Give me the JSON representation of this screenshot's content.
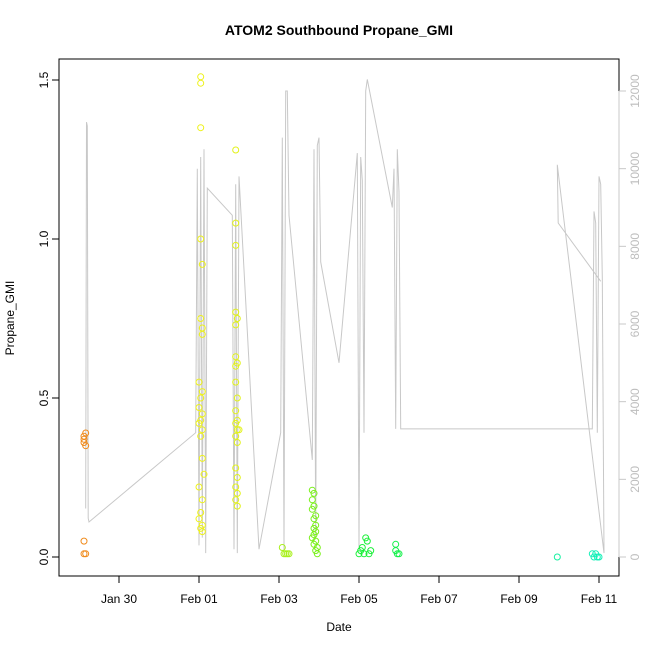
{
  "chart_data": {
    "type": "scatter",
    "title": "ATOM2 Southbound Propane_GMI",
    "xlabel": "Date",
    "ylabel": "Propane_GMI",
    "x_tick_labels": [
      "Jan 30",
      "Feb 01",
      "Feb 03",
      "Feb 05",
      "Feb 07",
      "Feb 09",
      "Feb 11"
    ],
    "x_ticks": [
      "2017-01-30",
      "2017-02-01",
      "2017-02-03",
      "2017-02-05",
      "2017-02-07",
      "2017-02-09",
      "2017-02-11"
    ],
    "xlim": [
      "2017-01-28T12:00",
      "2017-02-11T12:00"
    ],
    "ylim_left": [
      0,
      1.55
    ],
    "y_ticks_left": [
      "0.0",
      "0.5",
      "1.0",
      "1.5"
    ],
    "ylim_right": [
      0,
      12500
    ],
    "y_ticks_right": [
      "0",
      "2000",
      "4000",
      "6000",
      "8000",
      "10000",
      "12000"
    ],
    "right_axis_color": "#c8c8c8",
    "altitude_line_color": "#c8c8c8",
    "grid": false,
    "points": [
      {
        "x": "2017-01-29T03:00",
        "y": 0.38,
        "color": "#f08a1a"
      },
      {
        "x": "2017-01-29T03:00",
        "y": 0.37,
        "color": "#f08a1a"
      },
      {
        "x": "2017-01-29T03:00",
        "y": 0.36,
        "color": "#f08a1a"
      },
      {
        "x": "2017-01-29T04:00",
        "y": 0.39,
        "color": "#f08a1a"
      },
      {
        "x": "2017-01-29T04:00",
        "y": 0.35,
        "color": "#f08a1a"
      },
      {
        "x": "2017-01-29T03:00",
        "y": 0.05,
        "color": "#f08a1a"
      },
      {
        "x": "2017-01-29T03:00",
        "y": 0.01,
        "color": "#f08a1a"
      },
      {
        "x": "2017-01-29T04:00",
        "y": 0.01,
        "color": "#f08a1a"
      },
      {
        "x": "2017-02-01T01:00",
        "y": 1.51,
        "color": "#eef21a"
      },
      {
        "x": "2017-02-01T01:00",
        "y": 1.49,
        "color": "#eef21a"
      },
      {
        "x": "2017-02-01T01:00",
        "y": 1.35,
        "color": "#eef21a"
      },
      {
        "x": "2017-02-01T01:00",
        "y": 1.0,
        "color": "#eef21a"
      },
      {
        "x": "2017-02-01T02:00",
        "y": 0.92,
        "color": "#eef21a"
      },
      {
        "x": "2017-02-01T01:00",
        "y": 0.75,
        "color": "#eef21a"
      },
      {
        "x": "2017-02-01T02:00",
        "y": 0.72,
        "color": "#eef21a"
      },
      {
        "x": "2017-02-01T02:00",
        "y": 0.7,
        "color": "#eef21a"
      },
      {
        "x": "2017-02-01T00:00",
        "y": 0.55,
        "color": "#eef21a"
      },
      {
        "x": "2017-02-01T02:00",
        "y": 0.52,
        "color": "#eef21a"
      },
      {
        "x": "2017-02-01T01:00",
        "y": 0.5,
        "color": "#eef21a"
      },
      {
        "x": "2017-02-01T00:00",
        "y": 0.47,
        "color": "#eef21a"
      },
      {
        "x": "2017-02-01T02:00",
        "y": 0.45,
        "color": "#eef21a"
      },
      {
        "x": "2017-02-01T01:00",
        "y": 0.43,
        "color": "#eef21a"
      },
      {
        "x": "2017-02-01T00:00",
        "y": 0.42,
        "color": "#eef21a"
      },
      {
        "x": "2017-02-01T02:00",
        "y": 0.4,
        "color": "#eef21a"
      },
      {
        "x": "2017-02-01T01:00",
        "y": 0.38,
        "color": "#eef21a"
      },
      {
        "x": "2017-02-01T02:00",
        "y": 0.31,
        "color": "#eef21a"
      },
      {
        "x": "2017-02-01T03:00",
        "y": 0.26,
        "color": "#eef21a"
      },
      {
        "x": "2017-02-01T00:00",
        "y": 0.22,
        "color": "#eef21a"
      },
      {
        "x": "2017-02-01T02:00",
        "y": 0.18,
        "color": "#eef21a"
      },
      {
        "x": "2017-02-01T01:00",
        "y": 0.14,
        "color": "#eef21a"
      },
      {
        "x": "2017-02-01T00:00",
        "y": 0.12,
        "color": "#eef21a"
      },
      {
        "x": "2017-02-01T02:00",
        "y": 0.1,
        "color": "#eef21a"
      },
      {
        "x": "2017-02-01T01:00",
        "y": 0.09,
        "color": "#eef21a"
      },
      {
        "x": "2017-02-01T02:00",
        "y": 0.08,
        "color": "#eef21a"
      },
      {
        "x": "2017-02-01T22:00",
        "y": 1.28,
        "color": "#e2f21a"
      },
      {
        "x": "2017-02-01T22:00",
        "y": 1.05,
        "color": "#e2f21a"
      },
      {
        "x": "2017-02-01T22:00",
        "y": 0.98,
        "color": "#e2f21a"
      },
      {
        "x": "2017-02-01T22:00",
        "y": 0.77,
        "color": "#e2f21a"
      },
      {
        "x": "2017-02-01T23:00",
        "y": 0.75,
        "color": "#e2f21a"
      },
      {
        "x": "2017-02-01T22:00",
        "y": 0.73,
        "color": "#e2f21a"
      },
      {
        "x": "2017-02-01T22:00",
        "y": 0.63,
        "color": "#e2f21a"
      },
      {
        "x": "2017-02-01T23:00",
        "y": 0.61,
        "color": "#e2f21a"
      },
      {
        "x": "2017-02-01T22:00",
        "y": 0.6,
        "color": "#e2f21a"
      },
      {
        "x": "2017-02-01T22:00",
        "y": 0.55,
        "color": "#e2f21a"
      },
      {
        "x": "2017-02-01T23:00",
        "y": 0.5,
        "color": "#e2f21a"
      },
      {
        "x": "2017-02-01T22:00",
        "y": 0.46,
        "color": "#e2f21a"
      },
      {
        "x": "2017-02-01T23:00",
        "y": 0.43,
        "color": "#e2f21a"
      },
      {
        "x": "2017-02-01T22:00",
        "y": 0.42,
        "color": "#e2f21a"
      },
      {
        "x": "2017-02-01T23:00",
        "y": 0.4,
        "color": "#e2f21a"
      },
      {
        "x": "2017-02-01T22:00",
        "y": 0.38,
        "color": "#e2f21a"
      },
      {
        "x": "2017-02-02T00:00",
        "y": 0.4,
        "color": "#e2f21a"
      },
      {
        "x": "2017-02-01T23:00",
        "y": 0.36,
        "color": "#e2f21a"
      },
      {
        "x": "2017-02-01T22:00",
        "y": 0.28,
        "color": "#e2f21a"
      },
      {
        "x": "2017-02-01T23:00",
        "y": 0.25,
        "color": "#e2f21a"
      },
      {
        "x": "2017-02-01T22:00",
        "y": 0.22,
        "color": "#e2f21a"
      },
      {
        "x": "2017-02-01T23:00",
        "y": 0.2,
        "color": "#e2f21a"
      },
      {
        "x": "2017-02-01T22:00",
        "y": 0.18,
        "color": "#e2f21a"
      },
      {
        "x": "2017-02-01T23:00",
        "y": 0.16,
        "color": "#e2f21a"
      },
      {
        "x": "2017-02-03T02:00",
        "y": 0.03,
        "color": "#a8f01a"
      },
      {
        "x": "2017-02-03T03:00",
        "y": 0.01,
        "color": "#a8f01a"
      },
      {
        "x": "2017-02-03T04:00",
        "y": 0.01,
        "color": "#a8f01a"
      },
      {
        "x": "2017-02-03T05:00",
        "y": 0.01,
        "color": "#a8f01a"
      },
      {
        "x": "2017-02-03T06:00",
        "y": 0.01,
        "color": "#a8f01a"
      },
      {
        "x": "2017-02-03T20:00",
        "y": 0.21,
        "color": "#7af01a"
      },
      {
        "x": "2017-02-03T21:00",
        "y": 0.2,
        "color": "#7af01a"
      },
      {
        "x": "2017-02-03T20:00",
        "y": 0.18,
        "color": "#7af01a"
      },
      {
        "x": "2017-02-03T21:00",
        "y": 0.16,
        "color": "#7af01a"
      },
      {
        "x": "2017-02-03T20:00",
        "y": 0.15,
        "color": "#7af01a"
      },
      {
        "x": "2017-02-03T22:00",
        "y": 0.13,
        "color": "#7af01a"
      },
      {
        "x": "2017-02-03T21:00",
        "y": 0.12,
        "color": "#7af01a"
      },
      {
        "x": "2017-02-03T22:00",
        "y": 0.1,
        "color": "#7af01a"
      },
      {
        "x": "2017-02-03T21:00",
        "y": 0.09,
        "color": "#7af01a"
      },
      {
        "x": "2017-02-03T22:00",
        "y": 0.08,
        "color": "#7af01a"
      },
      {
        "x": "2017-02-03T21:00",
        "y": 0.07,
        "color": "#7af01a"
      },
      {
        "x": "2017-02-03T20:00",
        "y": 0.06,
        "color": "#7af01a"
      },
      {
        "x": "2017-02-03T22:00",
        "y": 0.05,
        "color": "#7af01a"
      },
      {
        "x": "2017-02-03T21:00",
        "y": 0.04,
        "color": "#7af01a"
      },
      {
        "x": "2017-02-03T23:00",
        "y": 0.03,
        "color": "#7af01a"
      },
      {
        "x": "2017-02-03T22:00",
        "y": 0.02,
        "color": "#7af01a"
      },
      {
        "x": "2017-02-03T23:00",
        "y": 0.01,
        "color": "#7af01a"
      },
      {
        "x": "2017-02-05T00:00",
        "y": 0.01,
        "color": "#1cf03a"
      },
      {
        "x": "2017-02-05T01:00",
        "y": 0.02,
        "color": "#1cf03a"
      },
      {
        "x": "2017-02-05T02:00",
        "y": 0.03,
        "color": "#1cf03a"
      },
      {
        "x": "2017-02-05T03:00",
        "y": 0.01,
        "color": "#1cf03a"
      },
      {
        "x": "2017-02-05T04:00",
        "y": 0.06,
        "color": "#1cf03a"
      },
      {
        "x": "2017-02-05T05:00",
        "y": 0.05,
        "color": "#1cf03a"
      },
      {
        "x": "2017-02-05T06:00",
        "y": 0.01,
        "color": "#1cf03a"
      },
      {
        "x": "2017-02-05T07:00",
        "y": 0.02,
        "color": "#1cf03a"
      },
      {
        "x": "2017-02-05T22:00",
        "y": 0.04,
        "color": "#14f04a"
      },
      {
        "x": "2017-02-05T23:00",
        "y": 0.01,
        "color": "#14f04a"
      },
      {
        "x": "2017-02-06T00:00",
        "y": 0.01,
        "color": "#14f04a"
      },
      {
        "x": "2017-02-05T22:00",
        "y": 0.02,
        "color": "#14f04a"
      },
      {
        "x": "2017-02-09T23:00",
        "y": 0.0,
        "color": "#14f0a0"
      },
      {
        "x": "2017-02-10T20:00",
        "y": 0.01,
        "color": "#14f0b8"
      },
      {
        "x": "2017-02-10T21:00",
        "y": 0.0,
        "color": "#14f0b8"
      },
      {
        "x": "2017-02-10T22:00",
        "y": 0.01,
        "color": "#14f0b8"
      },
      {
        "x": "2017-02-10T23:00",
        "y": 0.0,
        "color": "#14f0b8"
      },
      {
        "x": "2017-02-11T00:00",
        "y": 0.0,
        "color": "#14f0b8"
      }
    ],
    "altitude_series": [
      [
        "2017-01-29T04:00",
        1250
      ],
      [
        "2017-01-29T04:30",
        11200
      ],
      [
        "2017-01-29T05:00",
        11100
      ],
      [
        "2017-01-29T05:30",
        1000
      ],
      [
        "2017-01-29T06:00",
        900
      ],
      [
        "2017-01-31T22:00",
        3200
      ],
      [
        "2017-01-31T23:00",
        10000
      ],
      [
        "2017-02-01T00:00",
        300
      ],
      [
        "2017-02-01T01:00",
        10300
      ],
      [
        "2017-02-01T02:00",
        500
      ],
      [
        "2017-02-01T03:00",
        10500
      ],
      [
        "2017-02-01T04:00",
        100
      ],
      [
        "2017-02-01T05:00",
        9500
      ],
      [
        "2017-02-01T20:00",
        8800
      ],
      [
        "2017-02-01T21:00",
        200
      ],
      [
        "2017-02-01T22:00",
        9600
      ],
      [
        "2017-02-01T23:00",
        100
      ],
      [
        "2017-02-02T00:00",
        9800
      ],
      [
        "2017-02-02T12:00",
        200
      ],
      [
        "2017-02-03T01:00",
        3200
      ],
      [
        "2017-02-03T02:00",
        10800
      ],
      [
        "2017-02-03T03:00",
        200
      ],
      [
        "2017-02-03T04:00",
        12000
      ],
      [
        "2017-02-03T05:00",
        12000
      ],
      [
        "2017-02-03T06:00",
        8800
      ],
      [
        "2017-02-03T20:00",
        2500
      ],
      [
        "2017-02-03T21:00",
        10500
      ],
      [
        "2017-02-03T22:00",
        500
      ],
      [
        "2017-02-03T23:00",
        10600
      ],
      [
        "2017-02-04T00:00",
        10800
      ],
      [
        "2017-02-04T01:00",
        7600
      ],
      [
        "2017-02-04T12:00",
        5000
      ],
      [
        "2017-02-04T23:00",
        10400
      ],
      [
        "2017-02-05T00:00",
        200
      ],
      [
        "2017-02-05T01:00",
        10300
      ],
      [
        "2017-02-05T02:00",
        9700
      ],
      [
        "2017-02-05T03:00",
        3200
      ],
      [
        "2017-02-05T04:00",
        12000
      ],
      [
        "2017-02-05T05:00",
        12300
      ],
      [
        "2017-02-05T20:00",
        9000
      ],
      [
        "2017-02-05T21:00",
        10000
      ],
      [
        "2017-02-05T22:00",
        3300
      ],
      [
        "2017-02-05T23:00",
        10500
      ],
      [
        "2017-02-06T00:00",
        9400
      ],
      [
        "2017-02-06T01:00",
        3300
      ],
      [
        "2017-02-10T20:00",
        3300
      ],
      [
        "2017-02-10T21:00",
        8900
      ],
      [
        "2017-02-10T22:00",
        8600
      ],
      [
        "2017-02-10T23:00",
        3200
      ],
      [
        "2017-02-11T00:00",
        9800
      ],
      [
        "2017-02-11T01:00",
        9600
      ],
      [
        "2017-02-11T02:00",
        7200
      ],
      [
        "2017-02-11T03:00",
        100
      ],
      [
        "2017-02-09T23:00",
        10100
      ],
      [
        "2017-02-09T23:30",
        8600
      ],
      [
        "2017-02-11T01:00",
        7100
      ]
    ]
  }
}
